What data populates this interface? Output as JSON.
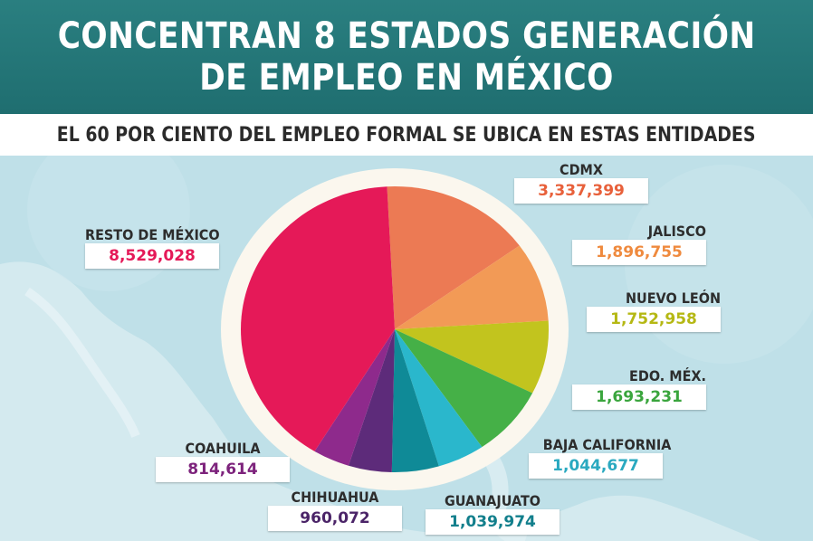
{
  "header": {
    "title_line1": "CONCENTRAN 8 ESTADOS GENERACIÓN",
    "title_line2": "DE EMPLEO EN MÉXICO",
    "subtitle": "EL 60 POR CIENTO DEL EMPLEO FORMAL SE UBICA EN ESTAS ENTIDADES"
  },
  "chart_data": {
    "type": "pie",
    "title": "CONCENTRAN 8 ESTADOS GENERACIÓN DE EMPLEO EN MÉXICO",
    "subtitle": "EL 60 POR CIENTO DEL EMPLEO FORMAL SE UBICA EN ESTAS ENTIDADES",
    "slices": [
      {
        "label": "CDMX",
        "value": 3337399,
        "display": "3,337,399",
        "color": "#ec7a54"
      },
      {
        "label": "JALISCO",
        "value": 1896755,
        "display": "1,896,755",
        "color": "#f29a56"
      },
      {
        "label": "NUEVO LEÓN",
        "value": 1752958,
        "display": "1,752,958",
        "color": "#c2c41e"
      },
      {
        "label": "EDO. MÉX.",
        "value": 1693231,
        "display": "1,693,231",
        "color": "#45b047"
      },
      {
        "label": "BAJA CALIFORNIA",
        "value": 1044677,
        "display": "1,044,677",
        "color": "#2ab7cc"
      },
      {
        "label": "GUANAJUATO",
        "value": 1039974,
        "display": "1,039,974",
        "color": "#0f8a97"
      },
      {
        "label": "CHIHUAHUA",
        "value": 960072,
        "display": "960,072",
        "color": "#5d2b7a"
      },
      {
        "label": "COAHUILA",
        "value": 814614,
        "display": "814,614",
        "color": "#8e2a8c"
      },
      {
        "label": "RESTO DE MÉXICO",
        "value": 8529028,
        "display": "8,529,028",
        "color": "#e51958"
      }
    ],
    "label_colors": {
      "CDMX": "#e8603a",
      "JALISCO": "#ef8a3e",
      "NUEVO LEÓN": "#b5b814",
      "EDO. MÉX.": "#3aa53d",
      "BAJA CALIFORNIA": "#2aa9c0",
      "GUANAJUATO": "#127f8c",
      "CHIHUAHUA": "#4b2468",
      "COAHUILA": "#7d237c",
      "RESTO DE MÉXICO": "#e51958"
    }
  }
}
